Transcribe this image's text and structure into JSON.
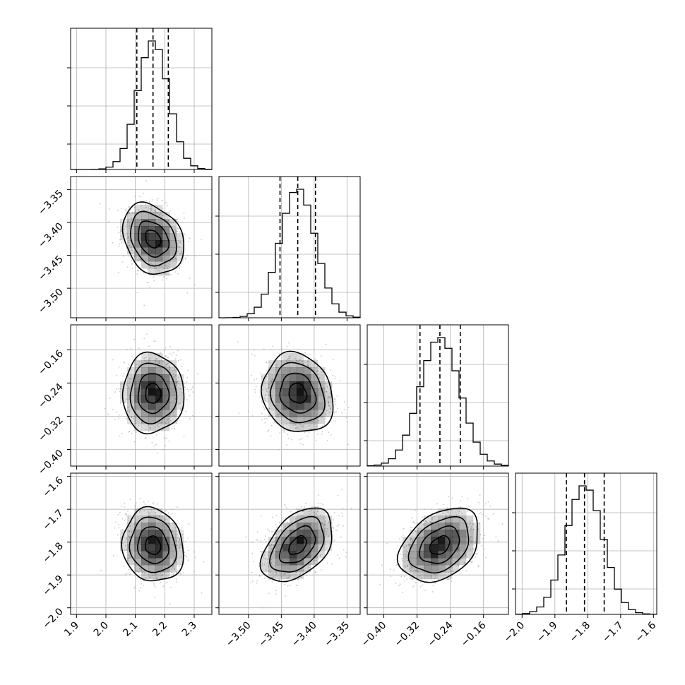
{
  "chart_data": {
    "type": "corner",
    "axis_colors": {
      "frame": "#000000",
      "grid": "#b0b0b0",
      "density": "#000000",
      "scatter": "#9a9a9a"
    },
    "parameters": [
      {
        "index": 0,
        "range": [
          1.88,
          2.36
        ],
        "median": 2.16,
        "q16": 2.105,
        "q84": 2.212,
        "sigma": 0.052,
        "ticks": [
          1.9,
          2.0,
          2.1,
          2.2,
          2.3
        ],
        "tick_labels": [
          "1.9",
          "2.0",
          "2.1",
          "2.2",
          "2.3"
        ]
      },
      {
        "index": 1,
        "range": [
          -3.545,
          -3.33
        ],
        "median": -3.425,
        "q16": -3.452,
        "q84": -3.398,
        "sigma": 0.027,
        "ticks": [
          -3.35,
          -3.4,
          -3.45,
          -3.5
        ],
        "tick_labels": [
          "−3.35",
          "−3.40",
          "−3.45",
          "−3.50"
        ]
      },
      {
        "index": 2,
        "range": [
          -0.44,
          -0.1
        ],
        "median": -0.265,
        "q16": -0.313,
        "q84": -0.216,
        "sigma": 0.048,
        "ticks": [
          -0.16,
          -0.24,
          -0.32,
          -0.4
        ],
        "tick_labels": [
          "−0.16",
          "−0.24",
          "−0.32",
          "−0.40"
        ]
      },
      {
        "index": 3,
        "range": [
          -2.02,
          -1.59
        ],
        "median": -1.81,
        "q16": -1.865,
        "q84": -1.75,
        "sigma": 0.056,
        "ticks": [
          -1.6,
          -1.7,
          -1.8,
          -1.9,
          -2.0
        ],
        "tick_labels": [
          "−1.6",
          "−1.7",
          "−1.8",
          "−1.9",
          "−2.0"
        ]
      }
    ],
    "correlations": [
      {
        "row": 1,
        "col": 0,
        "rho": -0.25
      },
      {
        "row": 2,
        "col": 0,
        "rho": 0.0
      },
      {
        "row": 2,
        "col": 1,
        "rho": -0.15
      },
      {
        "row": 3,
        "col": 0,
        "rho": -0.1
      },
      {
        "row": 3,
        "col": 1,
        "rho": 0.45
      },
      {
        "row": 3,
        "col": 2,
        "rho": 0.35
      }
    ],
    "grid": true,
    "quantile_lines": "dashed",
    "contour_levels_sigma": [
      0.5,
      1.0,
      1.5,
      2.0
    ]
  }
}
